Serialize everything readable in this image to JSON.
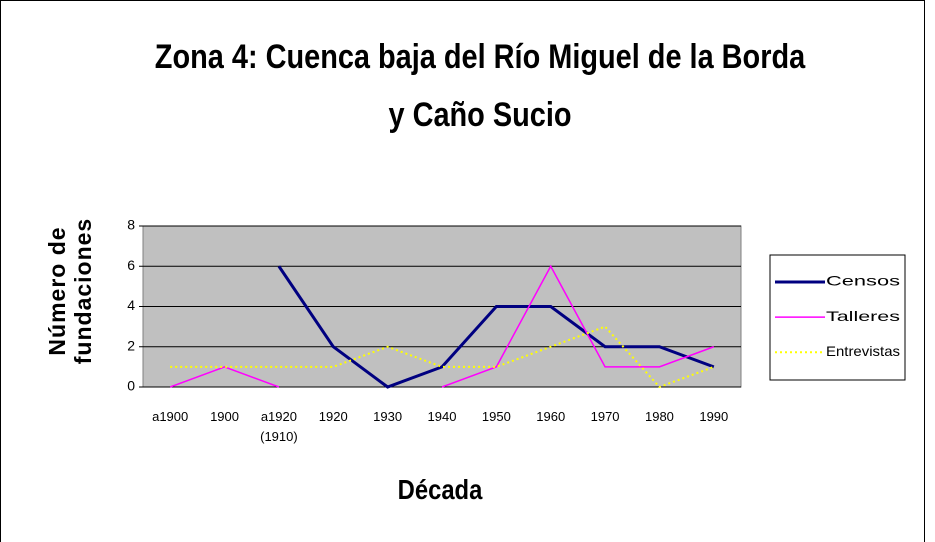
{
  "chart_data": {
    "type": "line",
    "title": "Zona 4: Cuenca baja del Río Miguel de la Borda y Caño Sucio",
    "x_label": "Década",
    "y_label": "Número de fundaciones",
    "categories": [
      "a1900",
      "1900",
      "a1920 (1910)",
      "1920",
      "1930",
      "1940",
      "1950",
      "1960",
      "1970",
      "1980",
      "1990"
    ],
    "series": [
      {
        "name": "Censos",
        "color": "#000080",
        "values": [
          null,
          null,
          6,
          2,
          0,
          1,
          4,
          4,
          2,
          2,
          1
        ]
      },
      {
        "name": "Talleres",
        "color": "#ff00ff",
        "values": [
          0,
          1,
          0,
          null,
          null,
          0,
          1,
          6,
          1,
          1,
          2
        ]
      },
      {
        "name": "Entrevistas",
        "color": "#ffff00",
        "values": [
          1,
          1,
          1,
          1,
          2,
          1,
          1,
          2,
          3,
          0,
          1
        ]
      }
    ],
    "ylim": [
      0,
      8
    ],
    "yticks": [
      0,
      2,
      4,
      6,
      8
    ],
    "grid": true,
    "legend": "right"
  }
}
